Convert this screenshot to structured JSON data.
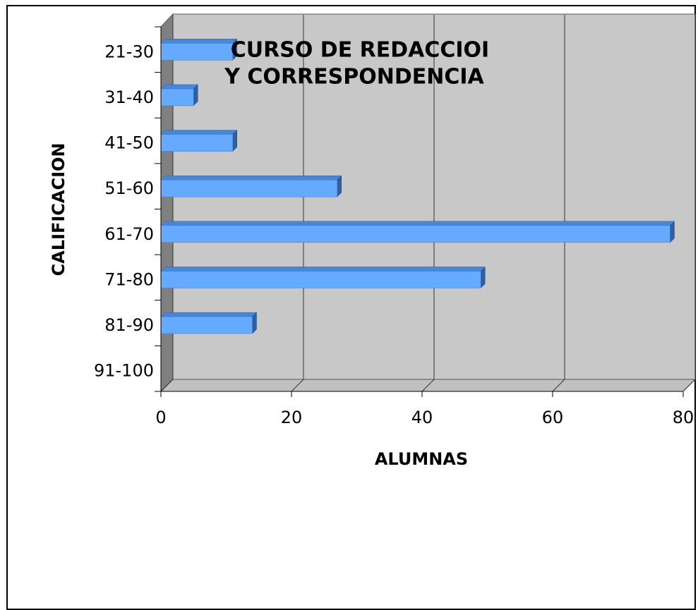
{
  "chart_data": {
    "type": "bar",
    "orientation": "horizontal",
    "title": [
      "CURSO DE REDACCIOI",
      "Y CORRESPONDENCIA"
    ],
    "xlabel": "ALUMNAS",
    "ylabel": "CALIFICACION",
    "categories": [
      "21-30",
      "31-40",
      "41-50",
      "51-60",
      "61-70",
      "71-80",
      "81-90",
      "91-100"
    ],
    "values": [
      11,
      5,
      11,
      27,
      78,
      49,
      14,
      0
    ],
    "color": "#66aaff",
    "xlim": [
      0,
      80
    ],
    "xticks": [
      0,
      20,
      40,
      60,
      80
    ],
    "grid": true
  }
}
